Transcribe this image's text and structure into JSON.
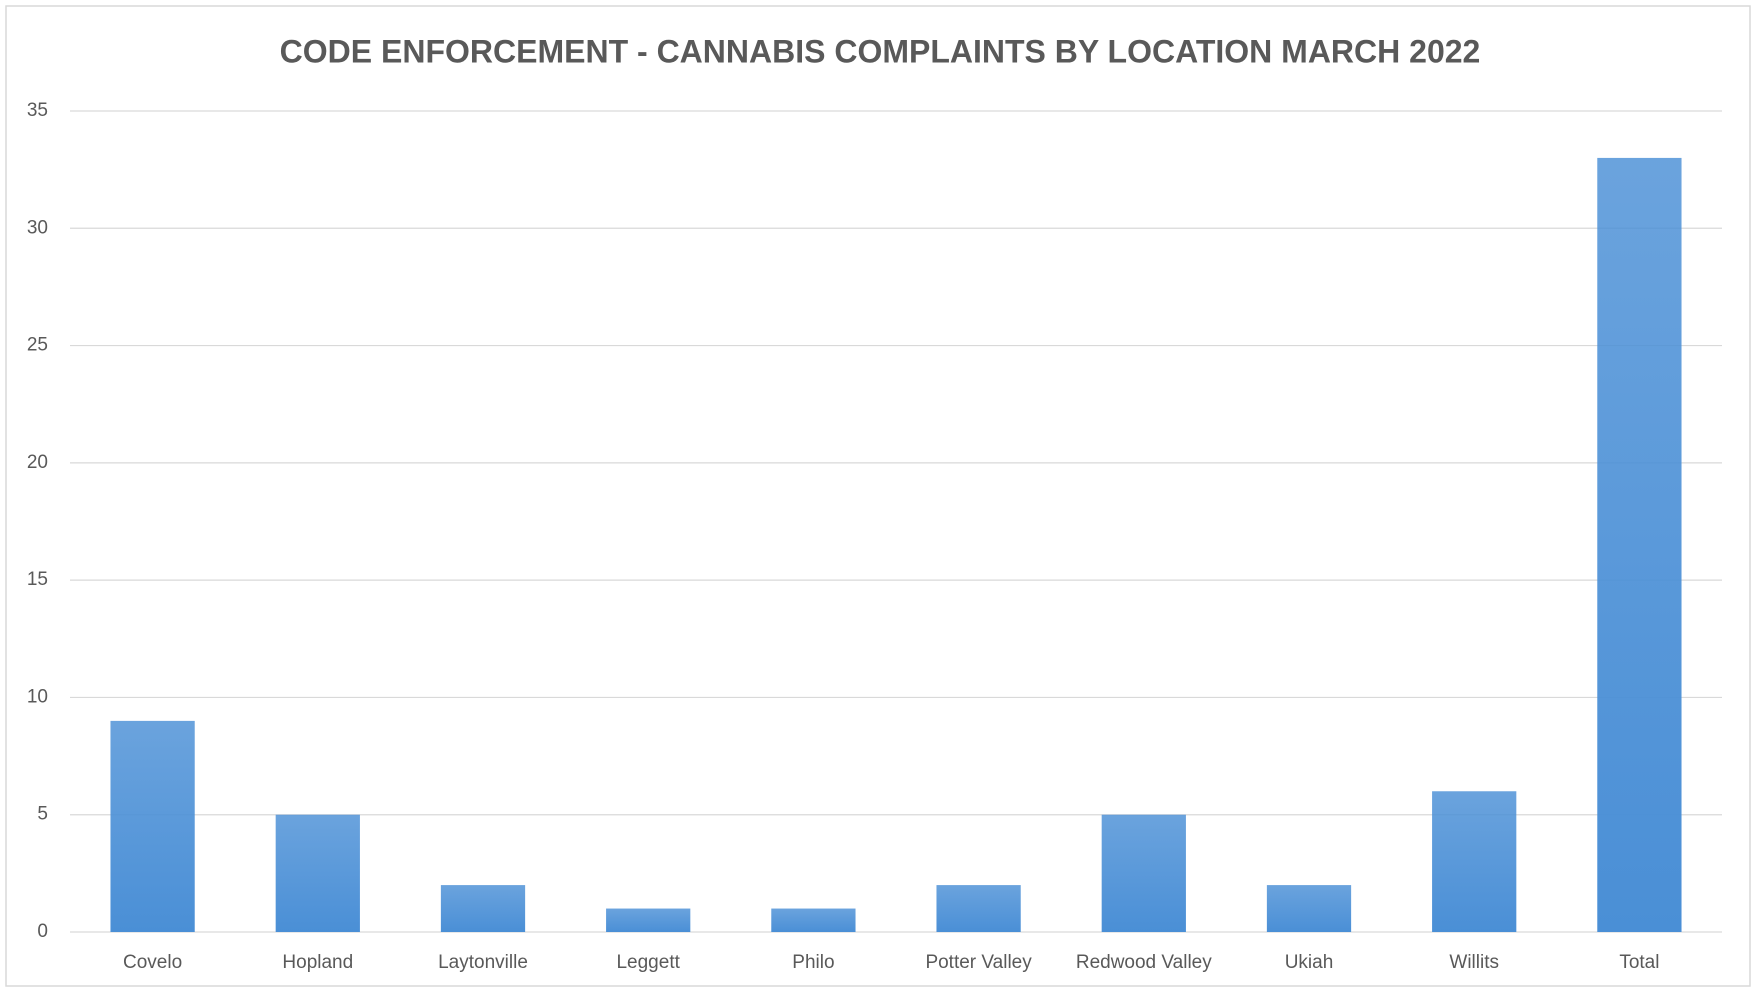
{
  "chart_data": {
    "type": "bar",
    "title": "CODE ENFORCEMENT - CANNABIS COMPLAINTS BY LOCATION MARCH 2022",
    "categories": [
      "Covelo",
      "Hopland",
      "Laytonville",
      "Leggett",
      "Philo",
      "Potter Valley",
      "Redwood Valley",
      "Ukiah",
      "Willits",
      "Total"
    ],
    "values": [
      9,
      5,
      2,
      1,
      1,
      2,
      5,
      2,
      6,
      33
    ],
    "color": "#4a8fd6",
    "ylim": [
      0,
      35
    ],
    "yticks": [
      0,
      5,
      10,
      15,
      20,
      25,
      30,
      35
    ],
    "grid": true
  }
}
